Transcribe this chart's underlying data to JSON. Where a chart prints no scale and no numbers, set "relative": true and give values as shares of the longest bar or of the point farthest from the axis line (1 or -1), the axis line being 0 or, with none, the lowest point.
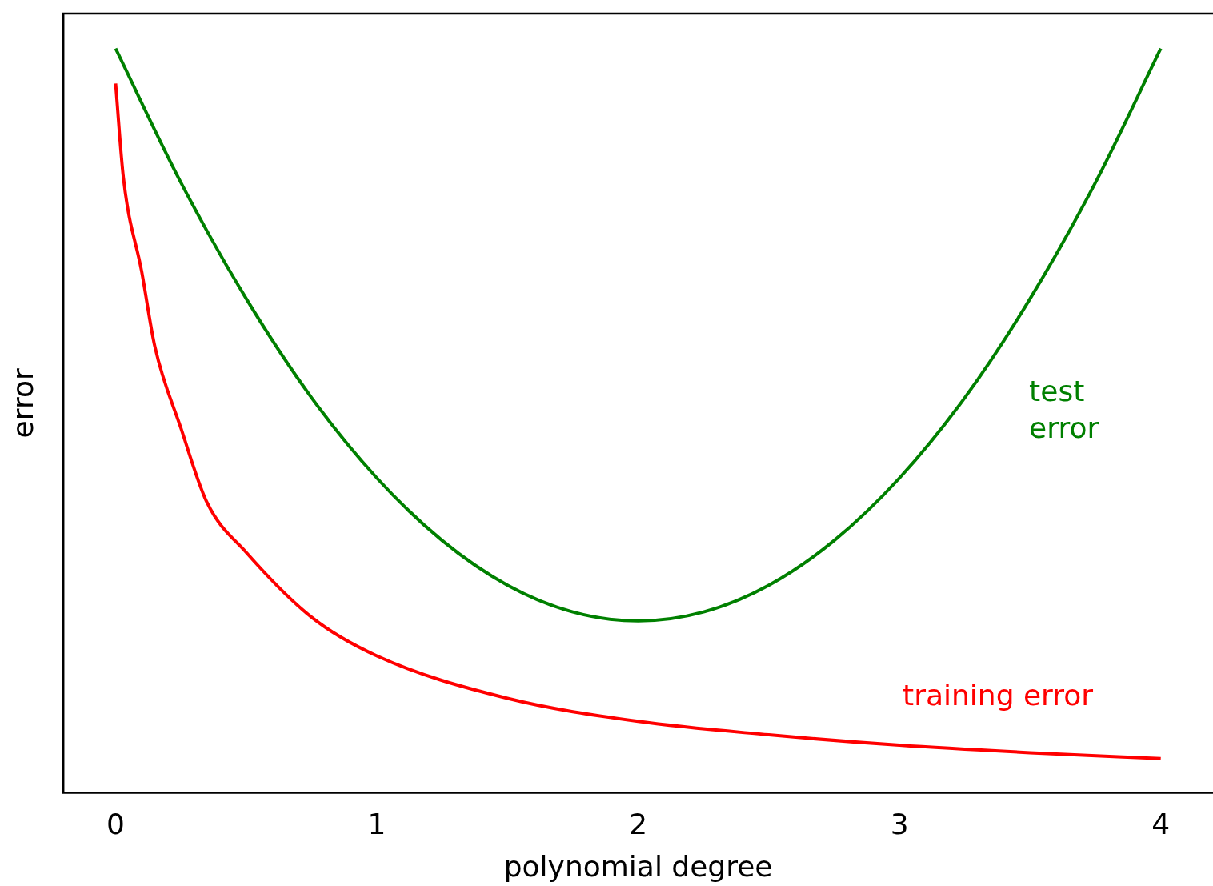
{
  "chart_data": {
    "type": "line",
    "relative": true,
    "xlabel": "polynomial degree",
    "ylabel": "error",
    "xlim": [
      -0.2,
      4.2
    ],
    "xticks": [
      0,
      1,
      2,
      3,
      4
    ],
    "grid": false,
    "legend": false,
    "marker": "none",
    "line_style": "solid",
    "series": [
      {
        "name": "test\nerror",
        "color": "#008000",
        "x": [
          0,
          0.25,
          0.5,
          0.75,
          1,
          1.25,
          1.5,
          1.75,
          2,
          2.25,
          2.5,
          2.75,
          3,
          3.25,
          3.5,
          3.75,
          4
        ],
        "values": [
          1,
          0.82,
          0.664,
          0.531,
          0.423,
          0.339,
          0.279,
          0.243,
          0.231,
          0.243,
          0.279,
          0.339,
          0.423,
          0.531,
          0.664,
          0.82,
          1
        ]
      },
      {
        "name": "training error",
        "color": "#ff0000",
        "x": [
          0,
          0.03,
          0.1,
          0.15,
          0.25,
          0.35,
          0.5,
          0.75,
          1,
          1.5,
          2,
          2.5,
          3,
          3.5,
          4
        ],
        "values": [
          0.953,
          0.826,
          0.7,
          0.6,
          0.49,
          0.39,
          0.323,
          0.236,
          0.184,
          0.127,
          0.096,
          0.078,
          0.064,
          0.054,
          0.046
        ]
      }
    ]
  }
}
